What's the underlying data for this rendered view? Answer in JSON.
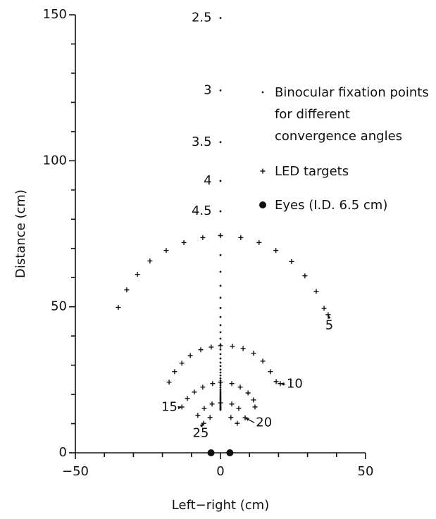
{
  "chart_data": {
    "type": "scatter",
    "xlabel": "Left−right  (cm)",
    "ylabel": "Distance  (cm)",
    "xlim": [
      -50,
      50
    ],
    "ylim": [
      0,
      150
    ],
    "xticks": [
      {
        "value": -50,
        "label": "−50"
      },
      0,
      50
    ],
    "yticks": [
      0,
      50,
      100,
      150
    ],
    "xminorticks": [
      -40,
      -30,
      -20,
      -10,
      10,
      20,
      30,
      40
    ],
    "yminorticks": [
      10,
      20,
      30,
      40,
      60,
      70,
      80,
      90,
      110,
      120,
      130,
      140
    ],
    "legend": "upper right",
    "series": [
      {
        "name": "Binocular fixation points for different convergence angles",
        "color": "#111111",
        "marker": "dot",
        "x": [
          0,
          0,
          0,
          0,
          0,
          0,
          0,
          0,
          0,
          0,
          0,
          0,
          0,
          0,
          0,
          0,
          0,
          0,
          0,
          0,
          0,
          0,
          0,
          0,
          0,
          0,
          0,
          0,
          0,
          0,
          0,
          0,
          0,
          0,
          0,
          0,
          0,
          0,
          0,
          0,
          0,
          0,
          0,
          0,
          0,
          0
        ],
        "values": [
          148.9,
          124.1,
          106.4,
          93.1,
          82.7,
          74.4,
          67.7,
          62.0,
          57.2,
          53.1,
          49.6,
          46.5,
          43.7,
          41.3,
          39.1,
          37.1,
          35.4,
          33.8,
          32.3,
          30.9,
          29.7,
          28.5,
          27.5,
          26.5,
          25.5,
          24.7,
          23.9,
          23.1,
          22.4,
          21.7,
          21.1,
          20.5,
          20.0,
          19.4,
          18.9,
          18.4,
          18.0,
          17.5,
          17.1,
          16.7,
          16.3,
          16.0,
          15.6,
          15.3,
          15.0,
          14.7
        ]
      },
      {
        "name": "LED targets",
        "color": "#111111",
        "marker": "plus",
        "x": [
          -35.2,
          -32.3,
          -28.6,
          -24.3,
          -18.7,
          -12.6,
          -6.1,
          0,
          7.0,
          13.3,
          19.1,
          24.5,
          29.1,
          33.0,
          35.7,
          37.1,
          -17.7,
          -15.8,
          -13.3,
          -10.4,
          -6.8,
          -3.2,
          0,
          4.1,
          7.8,
          11.4,
          14.6,
          17.2,
          19.2,
          20.6,
          -13.3,
          -11.4,
          -9.0,
          -6.1,
          -2.7,
          0,
          3.9,
          6.8,
          9.5,
          11.4,
          11.9,
          -7.8,
          -5.6,
          -2.9,
          0,
          3.9,
          6.3,
          8.5,
          -5.8,
          -3.6,
          3.6,
          5.8
        ],
        "values": [
          49.8,
          55.8,
          61.1,
          65.7,
          69.3,
          72.0,
          73.7,
          74.4,
          73.7,
          72.0,
          69.3,
          65.5,
          60.6,
          55.3,
          49.5,
          47.3,
          24.2,
          27.8,
          30.7,
          33.3,
          35.3,
          36.2,
          36.7,
          36.5,
          35.7,
          34.1,
          31.4,
          27.8,
          24.4,
          23.7,
          15.7,
          18.6,
          20.8,
          22.5,
          23.7,
          24.2,
          23.7,
          22.5,
          20.5,
          18.1,
          15.7,
          12.8,
          15.2,
          16.7,
          17.1,
          16.7,
          15.2,
          12.0,
          10.1,
          12.1,
          12.1,
          10.1
        ]
      },
      {
        "name": "Eyes (I.D. 6.5 cm)",
        "color": "#111111",
        "marker": "circle",
        "x": [
          -3.25,
          3.25
        ],
        "values": [
          0,
          0
        ]
      }
    ],
    "annotations": [
      {
        "text": "2.5",
        "xytext": [
          -3,
          148.9
        ]
      },
      {
        "text": "3",
        "xytext": [
          -3,
          124.1
        ]
      },
      {
        "text": "3.5",
        "xytext": [
          -3,
          106.4
        ]
      },
      {
        "text": "4",
        "xytext": [
          -3,
          93.1
        ]
      },
      {
        "text": "4.5",
        "xytext": [
          -3,
          82.7
        ]
      },
      {
        "text": "5",
        "xytext": [
          37.5,
          43.5
        ],
        "xy": [
          37.1,
          47.3
        ]
      },
      {
        "text": "10",
        "xytext": [
          22.8,
          23.5
        ],
        "xy": [
          20.6,
          23.7
        ]
      },
      {
        "text": "15",
        "xytext": [
          -14.8,
          15.5
        ],
        "xy": [
          -13.3,
          15.7
        ]
      },
      {
        "text": "20",
        "xytext": [
          12.2,
          10.3
        ],
        "xy": [
          8.5,
          12.0
        ]
      },
      {
        "text": "25",
        "xytext": [
          -6.8,
          6.6
        ],
        "xy": [
          -5.8,
          10.1
        ]
      }
    ]
  }
}
